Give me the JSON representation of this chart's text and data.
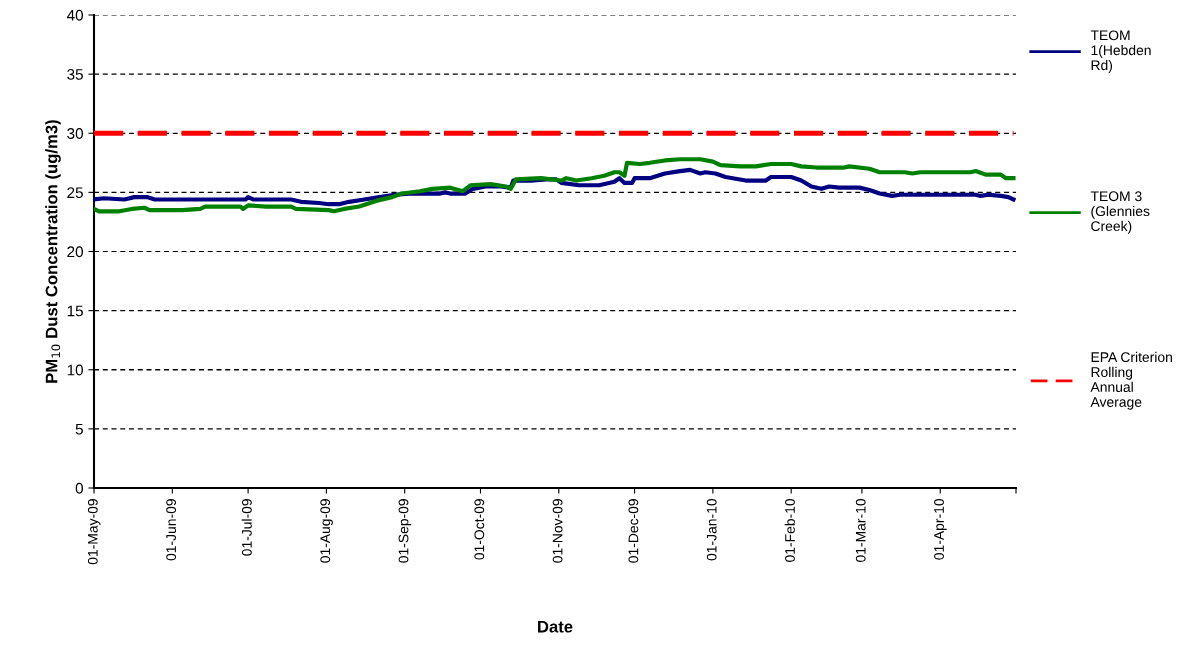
{
  "chart_data": {
    "type": "line",
    "xlabel": "Date",
    "ylabel": "PM$_{10}$ Dust Concentration (ug/m3)",
    "xlim": [
      "2009-05-01",
      "2010-05-01"
    ],
    "ylim": [
      0,
      40
    ],
    "yticks": [
      0,
      5,
      10,
      15,
      20,
      25,
      30,
      35,
      40
    ],
    "xticks": [
      {
        "value": "2009-05-01",
        "label": "01-May-09"
      },
      {
        "value": "2009-06-01",
        "label": "01-Jun-09"
      },
      {
        "value": "2009-07-01",
        "label": "01-Jul-09"
      },
      {
        "value": "2009-08-01",
        "label": "01-Aug-09"
      },
      {
        "value": "2009-09-01",
        "label": "01-Sep-09"
      },
      {
        "value": "2009-10-01",
        "label": "01-Oct-09"
      },
      {
        "value": "2009-11-01",
        "label": "01-Nov-09"
      },
      {
        "value": "2009-12-01",
        "label": "01-Dec-09"
      },
      {
        "value": "2010-01-01",
        "label": "01-Jan-10"
      },
      {
        "value": "2010-02-01",
        "label": "01-Feb-10"
      },
      {
        "value": "2010-03-01",
        "label": "01-Mar-10"
      },
      {
        "value": "2010-04-01",
        "label": "01-Apr-10"
      },
      {
        "value": "2010-05-01",
        "label": null
      }
    ],
    "grid": "y",
    "legend": "right",
    "marker": "none",
    "series": [
      {
        "name": "TEOM\n1(Hebden\nRd)",
        "color": "#000080",
        "line_style": "solid",
        "x": [
          "2009-05-01",
          "2009-05-05",
          "2009-05-13",
          "2009-05-17",
          "2009-05-22",
          "2009-05-25",
          "2009-06-08",
          "2009-06-12",
          "2009-06-30",
          "2009-07-01",
          "2009-07-03",
          "2009-07-18",
          "2009-07-22",
          "2009-07-29",
          "2009-08-02",
          "2009-08-06",
          "2009-08-10",
          "2009-08-16",
          "2009-08-22",
          "2009-08-28",
          "2009-09-03",
          "2009-09-15",
          "2009-09-17",
          "2009-09-19",
          "2009-09-25",
          "2009-09-28",
          "2009-10-03",
          "2009-10-09",
          "2009-10-13",
          "2009-10-14",
          "2009-10-21",
          "2009-10-27",
          "2009-10-31",
          "2009-11-02",
          "2009-11-09",
          "2009-11-17",
          "2009-11-23",
          "2009-11-25",
          "2009-11-27",
          "2009-11-30",
          "2009-12-01",
          "2009-12-07",
          "2009-12-13",
          "2009-12-19",
          "2009-12-23",
          "2009-12-27",
          "2009-12-29",
          "2010-01-02",
          "2010-01-06",
          "2010-01-14",
          "2010-01-22",
          "2010-01-24",
          "2010-02-01",
          "2010-02-05",
          "2010-02-09",
          "2010-02-13",
          "2010-02-16",
          "2010-02-20",
          "2010-02-28",
          "2010-03-04",
          "2010-03-08",
          "2010-03-13",
          "2010-03-16",
          "2010-03-30",
          "2010-04-15",
          "2010-04-17",
          "2010-04-20",
          "2010-04-25",
          "2010-04-28",
          "2010-04-30"
        ],
        "values": [
          24.4,
          24.5,
          24.4,
          24.6,
          24.6,
          24.4,
          24.4,
          24.4,
          24.4,
          24.6,
          24.4,
          24.4,
          24.2,
          24.1,
          24.0,
          24.0,
          24.2,
          24.4,
          24.6,
          24.8,
          24.9,
          24.9,
          25.0,
          24.9,
          24.9,
          25.3,
          25.5,
          25.5,
          25.4,
          26.0,
          26.0,
          26.1,
          26.1,
          25.8,
          25.6,
          25.6,
          25.9,
          26.2,
          25.8,
          25.8,
          26.2,
          26.2,
          26.6,
          26.8,
          26.9,
          26.6,
          26.7,
          26.6,
          26.3,
          26.0,
          26.0,
          26.3,
          26.3,
          26.0,
          25.5,
          25.3,
          25.5,
          25.4,
          25.4,
          25.2,
          24.9,
          24.7,
          24.8,
          24.8,
          24.8,
          24.7,
          24.8,
          24.7,
          24.6,
          24.4
        ]
      },
      {
        "name": "TEOM 3\n(Glennies\nCreek)",
        "color": "#008000",
        "line_style": "solid",
        "x": [
          "2009-05-01",
          "2009-05-03",
          "2009-05-11",
          "2009-05-16",
          "2009-05-21",
          "2009-05-23",
          "2009-06-02",
          "2009-06-05",
          "2009-06-12",
          "2009-06-14",
          "2009-06-28",
          "2009-06-29",
          "2009-07-01",
          "2009-07-08",
          "2009-07-18",
          "2009-07-20",
          "2009-08-02",
          "2009-08-04",
          "2009-08-08",
          "2009-08-14",
          "2009-08-21",
          "2009-08-27",
          "2009-08-31",
          "2009-09-07",
          "2009-09-12",
          "2009-09-19",
          "2009-09-24",
          "2009-09-27",
          "2009-10-05",
          "2009-10-11",
          "2009-10-13",
          "2009-10-15",
          "2009-10-25",
          "2009-10-29",
          "2009-11-02",
          "2009-11-04",
          "2009-11-08",
          "2009-11-14",
          "2009-11-19",
          "2009-11-23",
          "2009-11-25",
          "2009-11-27",
          "2009-11-28",
          "2009-12-03",
          "2009-12-07",
          "2009-12-13",
          "2009-12-19",
          "2009-12-27",
          "2010-01-01",
          "2010-01-04",
          "2010-01-12",
          "2010-01-18",
          "2010-01-24",
          "2010-02-01",
          "2010-02-05",
          "2010-02-11",
          "2010-02-22",
          "2010-02-24",
          "2010-03-04",
          "2010-03-08",
          "2010-03-18",
          "2010-03-21",
          "2010-03-24",
          "2010-04-13",
          "2010-04-15",
          "2010-04-19",
          "2010-04-25",
          "2010-04-27",
          "2010-04-30"
        ],
        "values": [
          23.6,
          23.4,
          23.4,
          23.6,
          23.7,
          23.5,
          23.5,
          23.5,
          23.6,
          23.8,
          23.8,
          23.6,
          23.9,
          23.8,
          23.8,
          23.6,
          23.5,
          23.4,
          23.6,
          23.8,
          24.3,
          24.6,
          24.9,
          25.1,
          25.3,
          25.4,
          25.1,
          25.6,
          25.7,
          25.5,
          25.3,
          26.1,
          26.2,
          26.1,
          26.0,
          26.2,
          26.0,
          26.2,
          26.4,
          26.7,
          26.7,
          26.4,
          27.5,
          27.4,
          27.5,
          27.7,
          27.8,
          27.8,
          27.6,
          27.3,
          27.2,
          27.2,
          27.4,
          27.4,
          27.2,
          27.1,
          27.1,
          27.2,
          27.0,
          26.7,
          26.7,
          26.6,
          26.7,
          26.7,
          26.8,
          26.5,
          26.5,
          26.2,
          26.2
        ]
      },
      {
        "name": "EPA Criterion\nRolling\nAnnual\nAverage",
        "color": "#ff0000",
        "line_style": "dashed",
        "x": [
          "2009-05-01",
          "2010-04-30"
        ],
        "values": [
          30,
          30
        ]
      }
    ]
  }
}
